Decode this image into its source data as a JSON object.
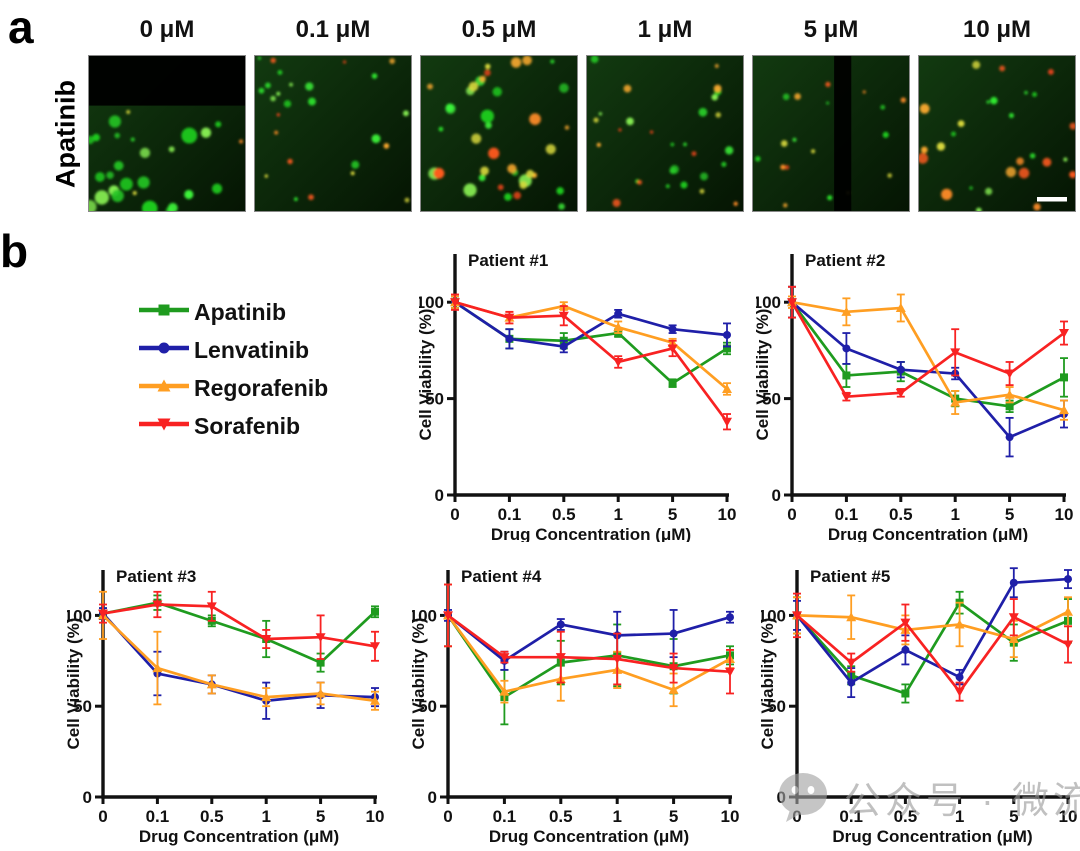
{
  "panel_a": {
    "label": "a",
    "row_label": "Apatinib",
    "concentrations": [
      "0 μM",
      "0.1 μM",
      "0.5 μM",
      "1 μM",
      "5 μM",
      "10 μM"
    ],
    "scale_bar": "white scale bar (bottom-right of 10 μM image)"
  },
  "panel_b": {
    "label": "b",
    "legend": {
      "items": [
        {
          "label": "Apatinib",
          "color": "#1f9b1f",
          "marker": "square"
        },
        {
          "label": "Lenvatinib",
          "color": "#1f1fa8",
          "marker": "circle"
        },
        {
          "label": "Regorafenib",
          "color": "#ff9e22",
          "marker": "triangle-up"
        },
        {
          "label": "Sorafenib",
          "color": "#f82222",
          "marker": "triangle-down"
        }
      ]
    }
  },
  "watermark": {
    "icon": "wechat-icon",
    "text": "公众号 · 微流控"
  },
  "chart_data": [
    {
      "type": "line",
      "title": "Patient #1",
      "xlabel": "Drug Concentration (μM)",
      "ylabel": "Cell Viability (%)",
      "categories": [
        "0",
        "0.1",
        "0.5",
        "1",
        "5",
        "10"
      ],
      "yticks": [
        0,
        50,
        100
      ],
      "ylim": [
        0,
        125
      ],
      "series": [
        {
          "name": "Apatinib",
          "values": [
            100,
            81,
            80,
            84,
            58,
            76
          ],
          "errors": [
            3,
            5,
            4,
            2,
            2,
            3
          ]
        },
        {
          "name": "Lenvatinib",
          "values": [
            100,
            81,
            77,
            94,
            86,
            83
          ],
          "errors": [
            3,
            5,
            3,
            2,
            2,
            6
          ]
        },
        {
          "name": "Regorafenib",
          "values": [
            100,
            92,
            98,
            87,
            79,
            55
          ],
          "errors": [
            3,
            3,
            2,
            3,
            2,
            3
          ]
        },
        {
          "name": "Sorafenib",
          "values": [
            100,
            92,
            93,
            69,
            76,
            38
          ],
          "errors": [
            4,
            3,
            5,
            3,
            4,
            4
          ]
        }
      ]
    },
    {
      "type": "line",
      "title": "Patient #2",
      "xlabel": "Drug Concentration (μM)",
      "ylabel": "Cell Viability (%)",
      "categories": [
        "0",
        "0.1",
        "0.5",
        "1",
        "5",
        "10"
      ],
      "yticks": [
        0,
        50,
        100
      ],
      "ylim": [
        0,
        125
      ],
      "series": [
        {
          "name": "Apatinib",
          "values": [
            100,
            62,
            64,
            50,
            46,
            61
          ],
          "errors": [
            8,
            6,
            5,
            4,
            3,
            10
          ]
        },
        {
          "name": "Lenvatinib",
          "values": [
            100,
            76,
            65,
            63,
            30,
            42
          ],
          "errors": [
            8,
            8,
            4,
            3,
            10,
            7
          ]
        },
        {
          "name": "Regorafenib",
          "values": [
            100,
            95,
            97,
            48,
            52,
            44
          ],
          "errors": [
            3,
            7,
            7,
            6,
            4,
            5
          ]
        },
        {
          "name": "Sorafenib",
          "values": [
            100,
            51,
            53,
            74,
            63,
            84
          ],
          "errors": [
            8,
            2,
            2,
            12,
            6,
            6
          ]
        }
      ]
    },
    {
      "type": "line",
      "title": "Patient #3",
      "xlabel": "Drug Concentration (μM)",
      "ylabel": "Cell Viability (%)",
      "categories": [
        "0",
        "0.1",
        "0.5",
        "1",
        "5",
        "10"
      ],
      "yticks": [
        0,
        50,
        100
      ],
      "ylim": [
        0,
        125
      ],
      "series": [
        {
          "name": "Apatinib",
          "values": [
            101,
            107,
            97,
            87,
            74,
            102
          ],
          "errors": [
            3,
            4,
            3,
            10,
            5,
            3
          ]
        },
        {
          "name": "Lenvatinib",
          "values": [
            101,
            68,
            62,
            53,
            56,
            55
          ],
          "errors": [
            3,
            12,
            5,
            10,
            7,
            5
          ]
        },
        {
          "name": "Regorafenib",
          "values": [
            100,
            71,
            62,
            55,
            57,
            53
          ],
          "errors": [
            13,
            20,
            5,
            5,
            6,
            5
          ]
        },
        {
          "name": "Sorafenib",
          "values": [
            101,
            106,
            105,
            87,
            88,
            83
          ],
          "errors": [
            5,
            7,
            8,
            5,
            12,
            8
          ]
        }
      ]
    },
    {
      "type": "line",
      "title": "Patient #4",
      "xlabel": "Drug Concentration (μM)",
      "ylabel": "Cell Viability (%)",
      "categories": [
        "0",
        "0.1",
        "0.5",
        "1",
        "5",
        "10"
      ],
      "yticks": [
        0,
        50,
        100
      ],
      "ylim": [
        0,
        125
      ],
      "series": [
        {
          "name": "Apatinib",
          "values": [
            100,
            55,
            74,
            78,
            72,
            78
          ],
          "errors": [
            17,
            15,
            12,
            17,
            15,
            5
          ]
        },
        {
          "name": "Lenvatinib",
          "values": [
            100,
            75,
            95,
            89,
            90,
            99
          ],
          "errors": [
            3,
            5,
            3,
            13,
            13,
            3
          ]
        },
        {
          "name": "Regorafenib",
          "values": [
            100,
            58,
            65,
            70,
            59,
            76
          ],
          "errors": [
            17,
            6,
            12,
            10,
            9,
            5
          ]
        },
        {
          "name": "Sorafenib",
          "values": [
            100,
            77,
            77,
            76,
            71,
            69
          ],
          "errors": [
            17,
            3,
            14,
            14,
            8,
            12
          ]
        }
      ]
    },
    {
      "type": "line",
      "title": "Patient #5",
      "xlabel": "Drug Concentration (μM)",
      "ylabel": "Cell Viability (%)",
      "categories": [
        "0",
        "0.1",
        "0.5",
        "1",
        "5",
        "10"
      ],
      "yticks": [
        0,
        50,
        100
      ],
      "ylim": [
        0,
        125
      ],
      "series": [
        {
          "name": "Apatinib",
          "values": [
            100,
            67,
            57,
            107,
            85,
            97
          ],
          "errors": [
            10,
            5,
            5,
            6,
            10,
            12
          ]
        },
        {
          "name": "Lenvatinib",
          "values": [
            100,
            63,
            81,
            66,
            118,
            120
          ],
          "errors": [
            8,
            8,
            8,
            4,
            8,
            5
          ]
        },
        {
          "name": "Regorafenib",
          "values": [
            100,
            99,
            92,
            95,
            87,
            102
          ],
          "errors": [
            10,
            12,
            8,
            12,
            10,
            8
          ]
        },
        {
          "name": "Sorafenib",
          "values": [
            100,
            74,
            96,
            58,
            99,
            84
          ],
          "errors": [
            12,
            5,
            10,
            5,
            10,
            10
          ]
        }
      ]
    }
  ]
}
